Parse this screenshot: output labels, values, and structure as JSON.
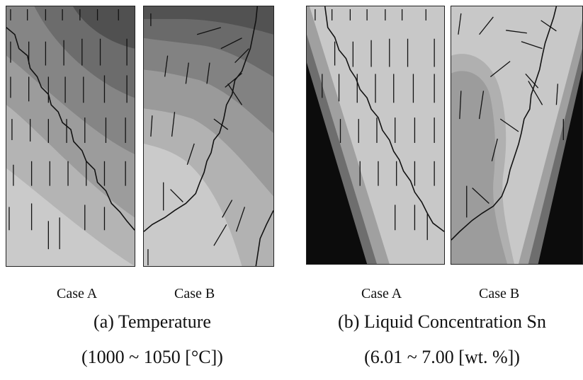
{
  "figure": {
    "temperature": {
      "case_a_label": "Case A",
      "case_b_label": "Case B",
      "title": "(a) Temperature",
      "range": "(1000 ~ 1050 [°C])"
    },
    "concentration": {
      "case_a_label": "Case A",
      "case_b_label": "Case B",
      "title": "(b) Liquid Concentration Sn",
      "range": "(6.01 ~ 7.00 [wt. %])"
    }
  }
}
